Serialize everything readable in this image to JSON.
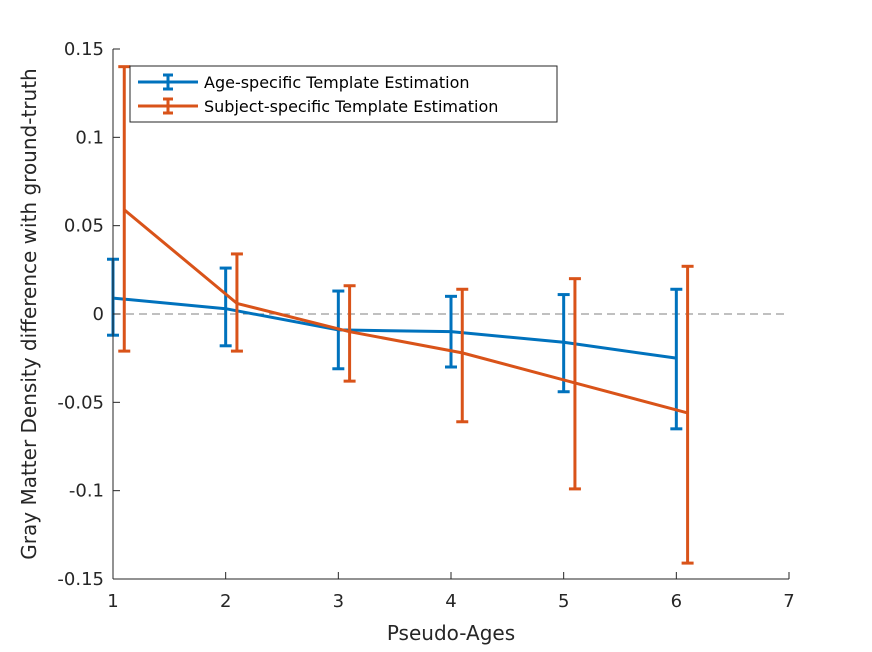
{
  "chart_data": {
    "type": "line",
    "title": "",
    "xlabel": "Pseudo-Ages",
    "ylabel": "Gray Matter Density difference with ground-truth",
    "xlim": [
      1,
      7
    ],
    "ylim": [
      -0.15,
      0.15
    ],
    "xticks": [
      1,
      2,
      3,
      4,
      5,
      6,
      7
    ],
    "xtick_labels": [
      "1",
      "2",
      "3",
      "4",
      "5",
      "6",
      "7"
    ],
    "yticks": [
      -0.15,
      -0.1,
      -0.05,
      0,
      0.05,
      0.1,
      0.15
    ],
    "ytick_labels": [
      "-0.15",
      "-0.1",
      "-0.05",
      "0",
      "0.05",
      "0.1",
      "0.15"
    ],
    "grid": false,
    "legend_position": "top-left",
    "reference_line": {
      "y": 0,
      "style": "dashed",
      "color": "#808080"
    },
    "series": [
      {
        "name": "Age-specific Template Estimation",
        "color": "#0072BD",
        "x": [
          1,
          2,
          3,
          4,
          5,
          6
        ],
        "y": [
          0.009,
          0.003,
          -0.009,
          -0.01,
          -0.016,
          -0.025
        ],
        "err_low": [
          0.021,
          0.021,
          0.022,
          0.02,
          0.028,
          0.04
        ],
        "err_high": [
          0.022,
          0.023,
          0.022,
          0.02,
          0.027,
          0.039
        ]
      },
      {
        "name": "Subject-specific Template Estimation",
        "color": "#D95319",
        "x": [
          1.1,
          2.1,
          3.1,
          4.1,
          5.1,
          6.1
        ],
        "y": [
          0.059,
          0.006,
          -0.01,
          -0.022,
          -0.039,
          -0.056
        ],
        "err_low": [
          0.08,
          0.027,
          0.028,
          0.039,
          0.06,
          0.085
        ],
        "err_high": [
          0.081,
          0.028,
          0.026,
          0.036,
          0.059,
          0.083
        ]
      }
    ]
  }
}
